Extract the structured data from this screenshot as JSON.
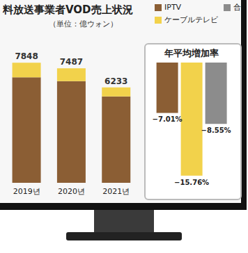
{
  "chart_data": [
    {
      "type": "bar",
      "title": "料放送事業者VOD売上状況",
      "subtitle": "（単位：億ウォン）",
      "stacked": true,
      "categories": [
        "2019년",
        "2020년",
        "2021년"
      ],
      "series": [
        {
          "name": "IPTV",
          "color": "#8b5e34",
          "values": [
            6900,
            6650,
            5650
          ]
        },
        {
          "name": "ケーブルテレビ",
          "color": "#f2d24b",
          "values": [
            948,
            837,
            583
          ]
        }
      ],
      "totals": [
        7848,
        7487,
        6233
      ],
      "ylim": [
        0,
        9000
      ],
      "tick_labels": "x",
      "grid": false
    },
    {
      "type": "bar",
      "title": "年平均増加率",
      "categories": [
        null
      ],
      "series": [
        {
          "name": "IPTV",
          "color": "#8b5e34",
          "values": [
            -7.01
          ],
          "value_labels": [
            "−7.01%"
          ]
        },
        {
          "name": "ケーブルテレビ",
          "color": "#f2d24b",
          "values": [
            -15.76
          ],
          "value_labels": [
            "−15.76%"
          ]
        },
        {
          "name": "合",
          "color": "#8c8c8c",
          "values": [
            -8.55
          ],
          "value_labels": [
            "−8.55%"
          ]
        }
      ],
      "ylim": [
        -18,
        0
      ],
      "data_labels": true,
      "tick_labels": false,
      "grid": false,
      "legend": "top-right"
    }
  ]
}
